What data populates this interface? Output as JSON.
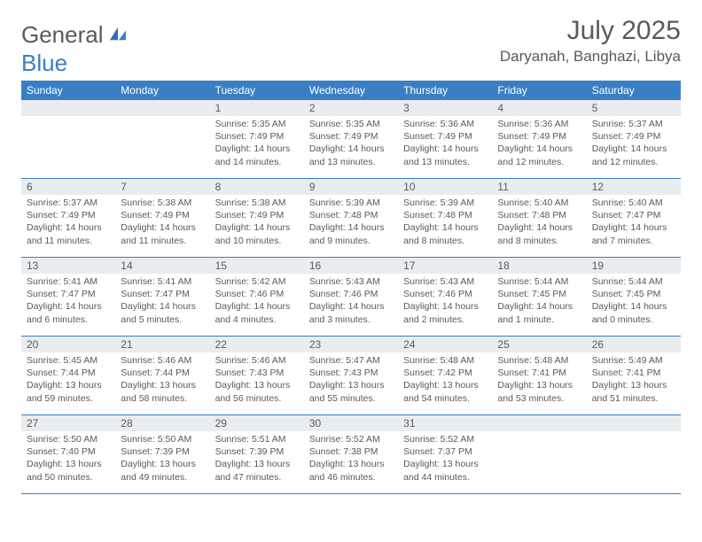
{
  "logo": {
    "part1": "General",
    "part2": "Blue"
  },
  "title": "July 2025",
  "location": "Daryanah, Banghazi, Libya",
  "colors": {
    "header_bg": "#3a7fc4",
    "header_text": "#ffffff",
    "daynum_bg": "#e9edf0",
    "text": "#5a5a5a",
    "rule": "#3a7fc4",
    "logo_blue": "#3a7fc4",
    "page_bg": "#ffffff"
  },
  "weekdays": [
    "Sunday",
    "Monday",
    "Tuesday",
    "Wednesday",
    "Thursday",
    "Friday",
    "Saturday"
  ],
  "weeks": [
    [
      null,
      null,
      {
        "n": "1",
        "sr": "5:35 AM",
        "ss": "7:49 PM",
        "dl": "14 hours and 14 minutes."
      },
      {
        "n": "2",
        "sr": "5:35 AM",
        "ss": "7:49 PM",
        "dl": "14 hours and 13 minutes."
      },
      {
        "n": "3",
        "sr": "5:36 AM",
        "ss": "7:49 PM",
        "dl": "14 hours and 13 minutes."
      },
      {
        "n": "4",
        "sr": "5:36 AM",
        "ss": "7:49 PM",
        "dl": "14 hours and 12 minutes."
      },
      {
        "n": "5",
        "sr": "5:37 AM",
        "ss": "7:49 PM",
        "dl": "14 hours and 12 minutes."
      }
    ],
    [
      {
        "n": "6",
        "sr": "5:37 AM",
        "ss": "7:49 PM",
        "dl": "14 hours and 11 minutes."
      },
      {
        "n": "7",
        "sr": "5:38 AM",
        "ss": "7:49 PM",
        "dl": "14 hours and 11 minutes."
      },
      {
        "n": "8",
        "sr": "5:38 AM",
        "ss": "7:49 PM",
        "dl": "14 hours and 10 minutes."
      },
      {
        "n": "9",
        "sr": "5:39 AM",
        "ss": "7:48 PM",
        "dl": "14 hours and 9 minutes."
      },
      {
        "n": "10",
        "sr": "5:39 AM",
        "ss": "7:48 PM",
        "dl": "14 hours and 8 minutes."
      },
      {
        "n": "11",
        "sr": "5:40 AM",
        "ss": "7:48 PM",
        "dl": "14 hours and 8 minutes."
      },
      {
        "n": "12",
        "sr": "5:40 AM",
        "ss": "7:47 PM",
        "dl": "14 hours and 7 minutes."
      }
    ],
    [
      {
        "n": "13",
        "sr": "5:41 AM",
        "ss": "7:47 PM",
        "dl": "14 hours and 6 minutes."
      },
      {
        "n": "14",
        "sr": "5:41 AM",
        "ss": "7:47 PM",
        "dl": "14 hours and 5 minutes."
      },
      {
        "n": "15",
        "sr": "5:42 AM",
        "ss": "7:46 PM",
        "dl": "14 hours and 4 minutes."
      },
      {
        "n": "16",
        "sr": "5:43 AM",
        "ss": "7:46 PM",
        "dl": "14 hours and 3 minutes."
      },
      {
        "n": "17",
        "sr": "5:43 AM",
        "ss": "7:46 PM",
        "dl": "14 hours and 2 minutes."
      },
      {
        "n": "18",
        "sr": "5:44 AM",
        "ss": "7:45 PM",
        "dl": "14 hours and 1 minute."
      },
      {
        "n": "19",
        "sr": "5:44 AM",
        "ss": "7:45 PM",
        "dl": "14 hours and 0 minutes."
      }
    ],
    [
      {
        "n": "20",
        "sr": "5:45 AM",
        "ss": "7:44 PM",
        "dl": "13 hours and 59 minutes."
      },
      {
        "n": "21",
        "sr": "5:46 AM",
        "ss": "7:44 PM",
        "dl": "13 hours and 58 minutes."
      },
      {
        "n": "22",
        "sr": "5:46 AM",
        "ss": "7:43 PM",
        "dl": "13 hours and 56 minutes."
      },
      {
        "n": "23",
        "sr": "5:47 AM",
        "ss": "7:43 PM",
        "dl": "13 hours and 55 minutes."
      },
      {
        "n": "24",
        "sr": "5:48 AM",
        "ss": "7:42 PM",
        "dl": "13 hours and 54 minutes."
      },
      {
        "n": "25",
        "sr": "5:48 AM",
        "ss": "7:41 PM",
        "dl": "13 hours and 53 minutes."
      },
      {
        "n": "26",
        "sr": "5:49 AM",
        "ss": "7:41 PM",
        "dl": "13 hours and 51 minutes."
      }
    ],
    [
      {
        "n": "27",
        "sr": "5:50 AM",
        "ss": "7:40 PM",
        "dl": "13 hours and 50 minutes."
      },
      {
        "n": "28",
        "sr": "5:50 AM",
        "ss": "7:39 PM",
        "dl": "13 hours and 49 minutes."
      },
      {
        "n": "29",
        "sr": "5:51 AM",
        "ss": "7:39 PM",
        "dl": "13 hours and 47 minutes."
      },
      {
        "n": "30",
        "sr": "5:52 AM",
        "ss": "7:38 PM",
        "dl": "13 hours and 46 minutes."
      },
      {
        "n": "31",
        "sr": "5:52 AM",
        "ss": "7:37 PM",
        "dl": "13 hours and 44 minutes."
      },
      null,
      null
    ]
  ],
  "labels": {
    "sunrise": "Sunrise: ",
    "sunset": "Sunset: ",
    "daylight": "Daylight: "
  }
}
